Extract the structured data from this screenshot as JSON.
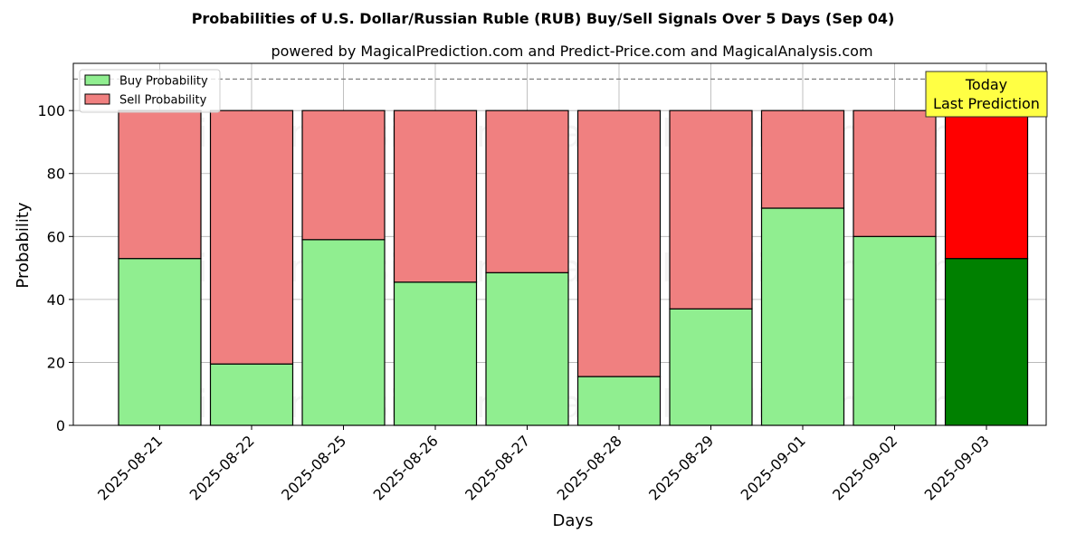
{
  "chart_data": {
    "type": "bar",
    "stacked": true,
    "title": "Probabilities of U.S. Dollar/Russian Ruble (RUB) Buy/Sell Signals Over 5 Days (Sep 04)",
    "subtitle": "powered by MagicalPrediction.com and Predict-Price.com and MagicalAnalysis.com",
    "xlabel": "Days",
    "ylabel": "Probability",
    "ylim": [
      0,
      115
    ],
    "yticks": [
      0,
      20,
      40,
      60,
      80,
      100
    ],
    "grid": true,
    "legend_position": "top-left",
    "reference_line": 110,
    "categories": [
      "2025-08-21",
      "2025-08-22",
      "2025-08-25",
      "2025-08-26",
      "2025-08-27",
      "2025-08-28",
      "2025-08-29",
      "2025-09-01",
      "2025-09-02",
      "2025-09-03"
    ],
    "series": [
      {
        "name": "Buy Probability",
        "color": "#90ee90",
        "highlight_color": "#008000",
        "values": [
          53,
          19.5,
          59,
          45.5,
          48.5,
          15.5,
          37,
          69,
          60,
          53
        ]
      },
      {
        "name": "Sell Probability",
        "color": "#f08080",
        "highlight_color": "#ff0000",
        "values": [
          47,
          80.5,
          41,
          54.5,
          51.5,
          84.5,
          63,
          31,
          40,
          47
        ]
      }
    ],
    "highlight_index": 9,
    "annotation": {
      "line1": "Today",
      "line2": "Last Prediction",
      "color": "#ffff44"
    },
    "watermarks": [
      "MagicalAnalysis.com",
      "MagicalPrediction.com"
    ]
  }
}
